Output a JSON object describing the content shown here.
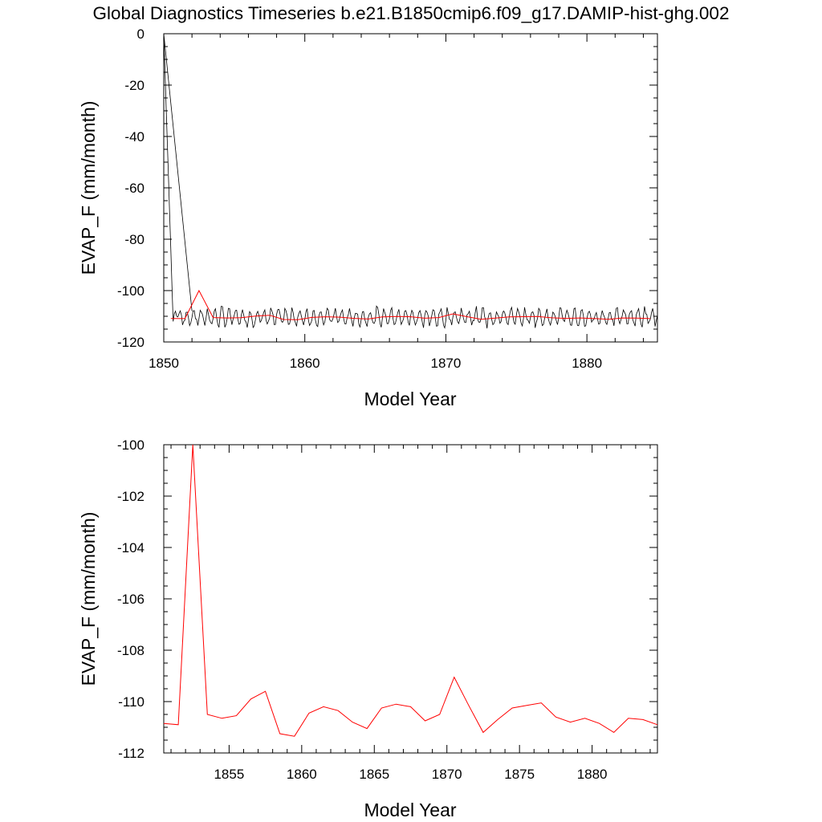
{
  "figure": {
    "title": "Global Diagnostics Timeseries b.e21.B1850cmip6.f09_g17.DAMIP-hist-ghg.002"
  },
  "colors": {
    "monthly": "#000000",
    "annual": "#ff0000",
    "axes": "#000000"
  },
  "chart_data": [
    {
      "type": "line",
      "xlabel": "Model Year",
      "ylabel": "EVAP_F (mm/month)",
      "xlim": [
        1850,
        1885
      ],
      "ylim": [
        -120,
        0
      ],
      "xticks": [
        "1850",
        "1860",
        "1870",
        "1880"
      ],
      "yticks": [
        "0",
        "-20",
        "-40",
        "-60",
        "-80",
        "-100",
        "-120"
      ],
      "grid": false,
      "series": [
        {
          "role": "monthly",
          "note_color": "black",
          "x_start": 1850,
          "x_step": 0.0833333,
          "seasonal_amplitude_approx": 3,
          "values_approx_initial": [
            0,
            -14,
            -28,
            -42,
            -56,
            -70,
            -84,
            -98,
            -112,
            -109,
            -108,
            -110
          ]
        },
        {
          "role": "annual",
          "x": [
            1850.5,
            1851.5,
            1852.5,
            1853.5,
            1854.5,
            1855.5,
            1856.5,
            1857.5,
            1858.5,
            1859.5,
            1860.5,
            1861.5,
            1862.5,
            1863.5,
            1864.5,
            1865.5,
            1866.5,
            1867.5,
            1868.5,
            1869.5,
            1870.5,
            1871.5,
            1872.5,
            1873.5,
            1874.5,
            1875.5,
            1876.5,
            1877.5,
            1878.5,
            1879.5,
            1880.5,
            1881.5,
            1882.5,
            1883.5,
            1884.5
          ],
          "values": [
            -110.85,
            -110.9,
            -100.0,
            -110.5,
            -110.65,
            -110.55,
            -109.9,
            -109.6,
            -111.25,
            -111.35,
            -110.45,
            -110.2,
            -110.35,
            -110.8,
            -111.05,
            -110.25,
            -110.1,
            -110.2,
            -110.75,
            -110.5,
            -109.05,
            -110.15,
            -111.2,
            -110.7,
            -110.25,
            -110.15,
            -110.05,
            -110.6,
            -110.8,
            -110.65,
            -110.85,
            -111.2,
            -110.65,
            -110.7,
            -110.9
          ]
        }
      ]
    },
    {
      "type": "line",
      "xlabel": "Model Year",
      "ylabel": "EVAP_F (mm/month)",
      "xlim": [
        1850.5,
        1884.5
      ],
      "ylim": [
        -112,
        -100
      ],
      "xticks": [
        "1855",
        "1860",
        "1865",
        "1870",
        "1875",
        "1880"
      ],
      "yticks": [
        "-100",
        "-102",
        "-104",
        "-106",
        "-108",
        "-110",
        "-112"
      ],
      "grid": false,
      "series": [
        {
          "role": "annual",
          "x": [
            1850.5,
            1851.5,
            1852.5,
            1853.5,
            1854.5,
            1855.5,
            1856.5,
            1857.5,
            1858.5,
            1859.5,
            1860.5,
            1861.5,
            1862.5,
            1863.5,
            1864.5,
            1865.5,
            1866.5,
            1867.5,
            1868.5,
            1869.5,
            1870.5,
            1871.5,
            1872.5,
            1873.5,
            1874.5,
            1875.5,
            1876.5,
            1877.5,
            1878.5,
            1879.5,
            1880.5,
            1881.5,
            1882.5,
            1883.5,
            1884.5
          ],
          "values": [
            -110.85,
            -110.9,
            -100.0,
            -110.5,
            -110.65,
            -110.55,
            -109.9,
            -109.6,
            -111.25,
            -111.35,
            -110.45,
            -110.2,
            -110.35,
            -110.8,
            -111.05,
            -110.25,
            -110.1,
            -110.2,
            -110.75,
            -110.5,
            -109.05,
            -110.15,
            -111.2,
            -110.7,
            -110.25,
            -110.15,
            -110.05,
            -110.6,
            -110.8,
            -110.65,
            -110.85,
            -111.2,
            -110.65,
            -110.7,
            -110.9
          ]
        }
      ]
    }
  ]
}
